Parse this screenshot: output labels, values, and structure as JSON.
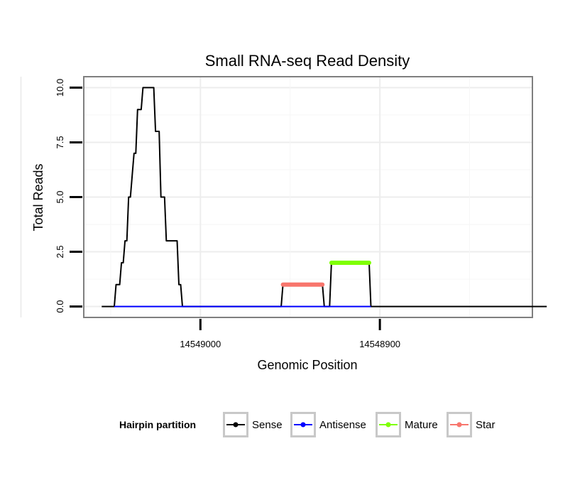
{
  "chart_data": {
    "type": "line",
    "title": "Small RNA-seq Read Density",
    "xlabel": "Genomic Position",
    "ylabel": "Total Reads",
    "x_reversed": true,
    "xlim": [
      14549065,
      14548815
    ],
    "ylim": [
      -0.5,
      10.5
    ],
    "x_ticks": [
      14549000,
      14548900
    ],
    "x_tick_labels": [
      "14549000",
      "14548900"
    ],
    "y_ticks": [
      0,
      2.5,
      5,
      7.5,
      10
    ],
    "y_tick_labels": [
      "0.0",
      "2.5",
      "5.0",
      "7.5",
      "10.0"
    ],
    "grid": true,
    "legend": {
      "title": "Hairpin partition",
      "position": "bottom",
      "entries": [
        {
          "label": "Sense",
          "color": "#000000"
        },
        {
          "label": "Antisense",
          "color": "#0000ff"
        },
        {
          "label": "Mature",
          "color": "#7fff00"
        },
        {
          "label": "Star",
          "color": "#f8766d"
        }
      ]
    },
    "series": [
      {
        "name": "Sense",
        "color": "#000000",
        "points": [
          [
            14549055,
            0
          ],
          [
            14549048,
            0
          ],
          [
            14549047,
            1
          ],
          [
            14549045,
            1
          ],
          [
            14549044,
            2
          ],
          [
            14549043,
            2
          ],
          [
            14549042,
            3
          ],
          [
            14549041,
            3
          ],
          [
            14549040,
            5
          ],
          [
            14549039,
            5
          ],
          [
            14549037,
            7
          ],
          [
            14549036,
            7
          ],
          [
            14549035,
            9
          ],
          [
            14549033,
            9
          ],
          [
            14549032,
            10
          ],
          [
            14549026,
            10
          ],
          [
            14549025,
            8
          ],
          [
            14549023,
            8
          ],
          [
            14549022,
            5
          ],
          [
            14549020,
            5
          ],
          [
            14549019,
            3
          ],
          [
            14549013,
            3
          ],
          [
            14549012,
            1
          ],
          [
            14549011,
            1
          ],
          [
            14549010,
            0
          ],
          [
            14548955,
            0
          ],
          [
            14548954,
            1
          ],
          [
            14548932,
            1
          ],
          [
            14548931,
            0
          ],
          [
            14548928,
            0
          ],
          [
            14548927,
            2
          ],
          [
            14548906,
            2
          ],
          [
            14548905,
            0
          ],
          [
            14548807,
            0
          ]
        ]
      },
      {
        "name": "Antisense",
        "color": "#0000ff",
        "points": [
          [
            14549048,
            0
          ],
          [
            14548905,
            0
          ]
        ]
      },
      {
        "name": "Mature",
        "color": "#7fff00",
        "points": [
          [
            14548927,
            2
          ],
          [
            14548906,
            2
          ]
        ]
      },
      {
        "name": "Star",
        "color": "#f8766d",
        "points": [
          [
            14548954,
            1
          ],
          [
            14548932,
            1
          ]
        ]
      }
    ]
  }
}
